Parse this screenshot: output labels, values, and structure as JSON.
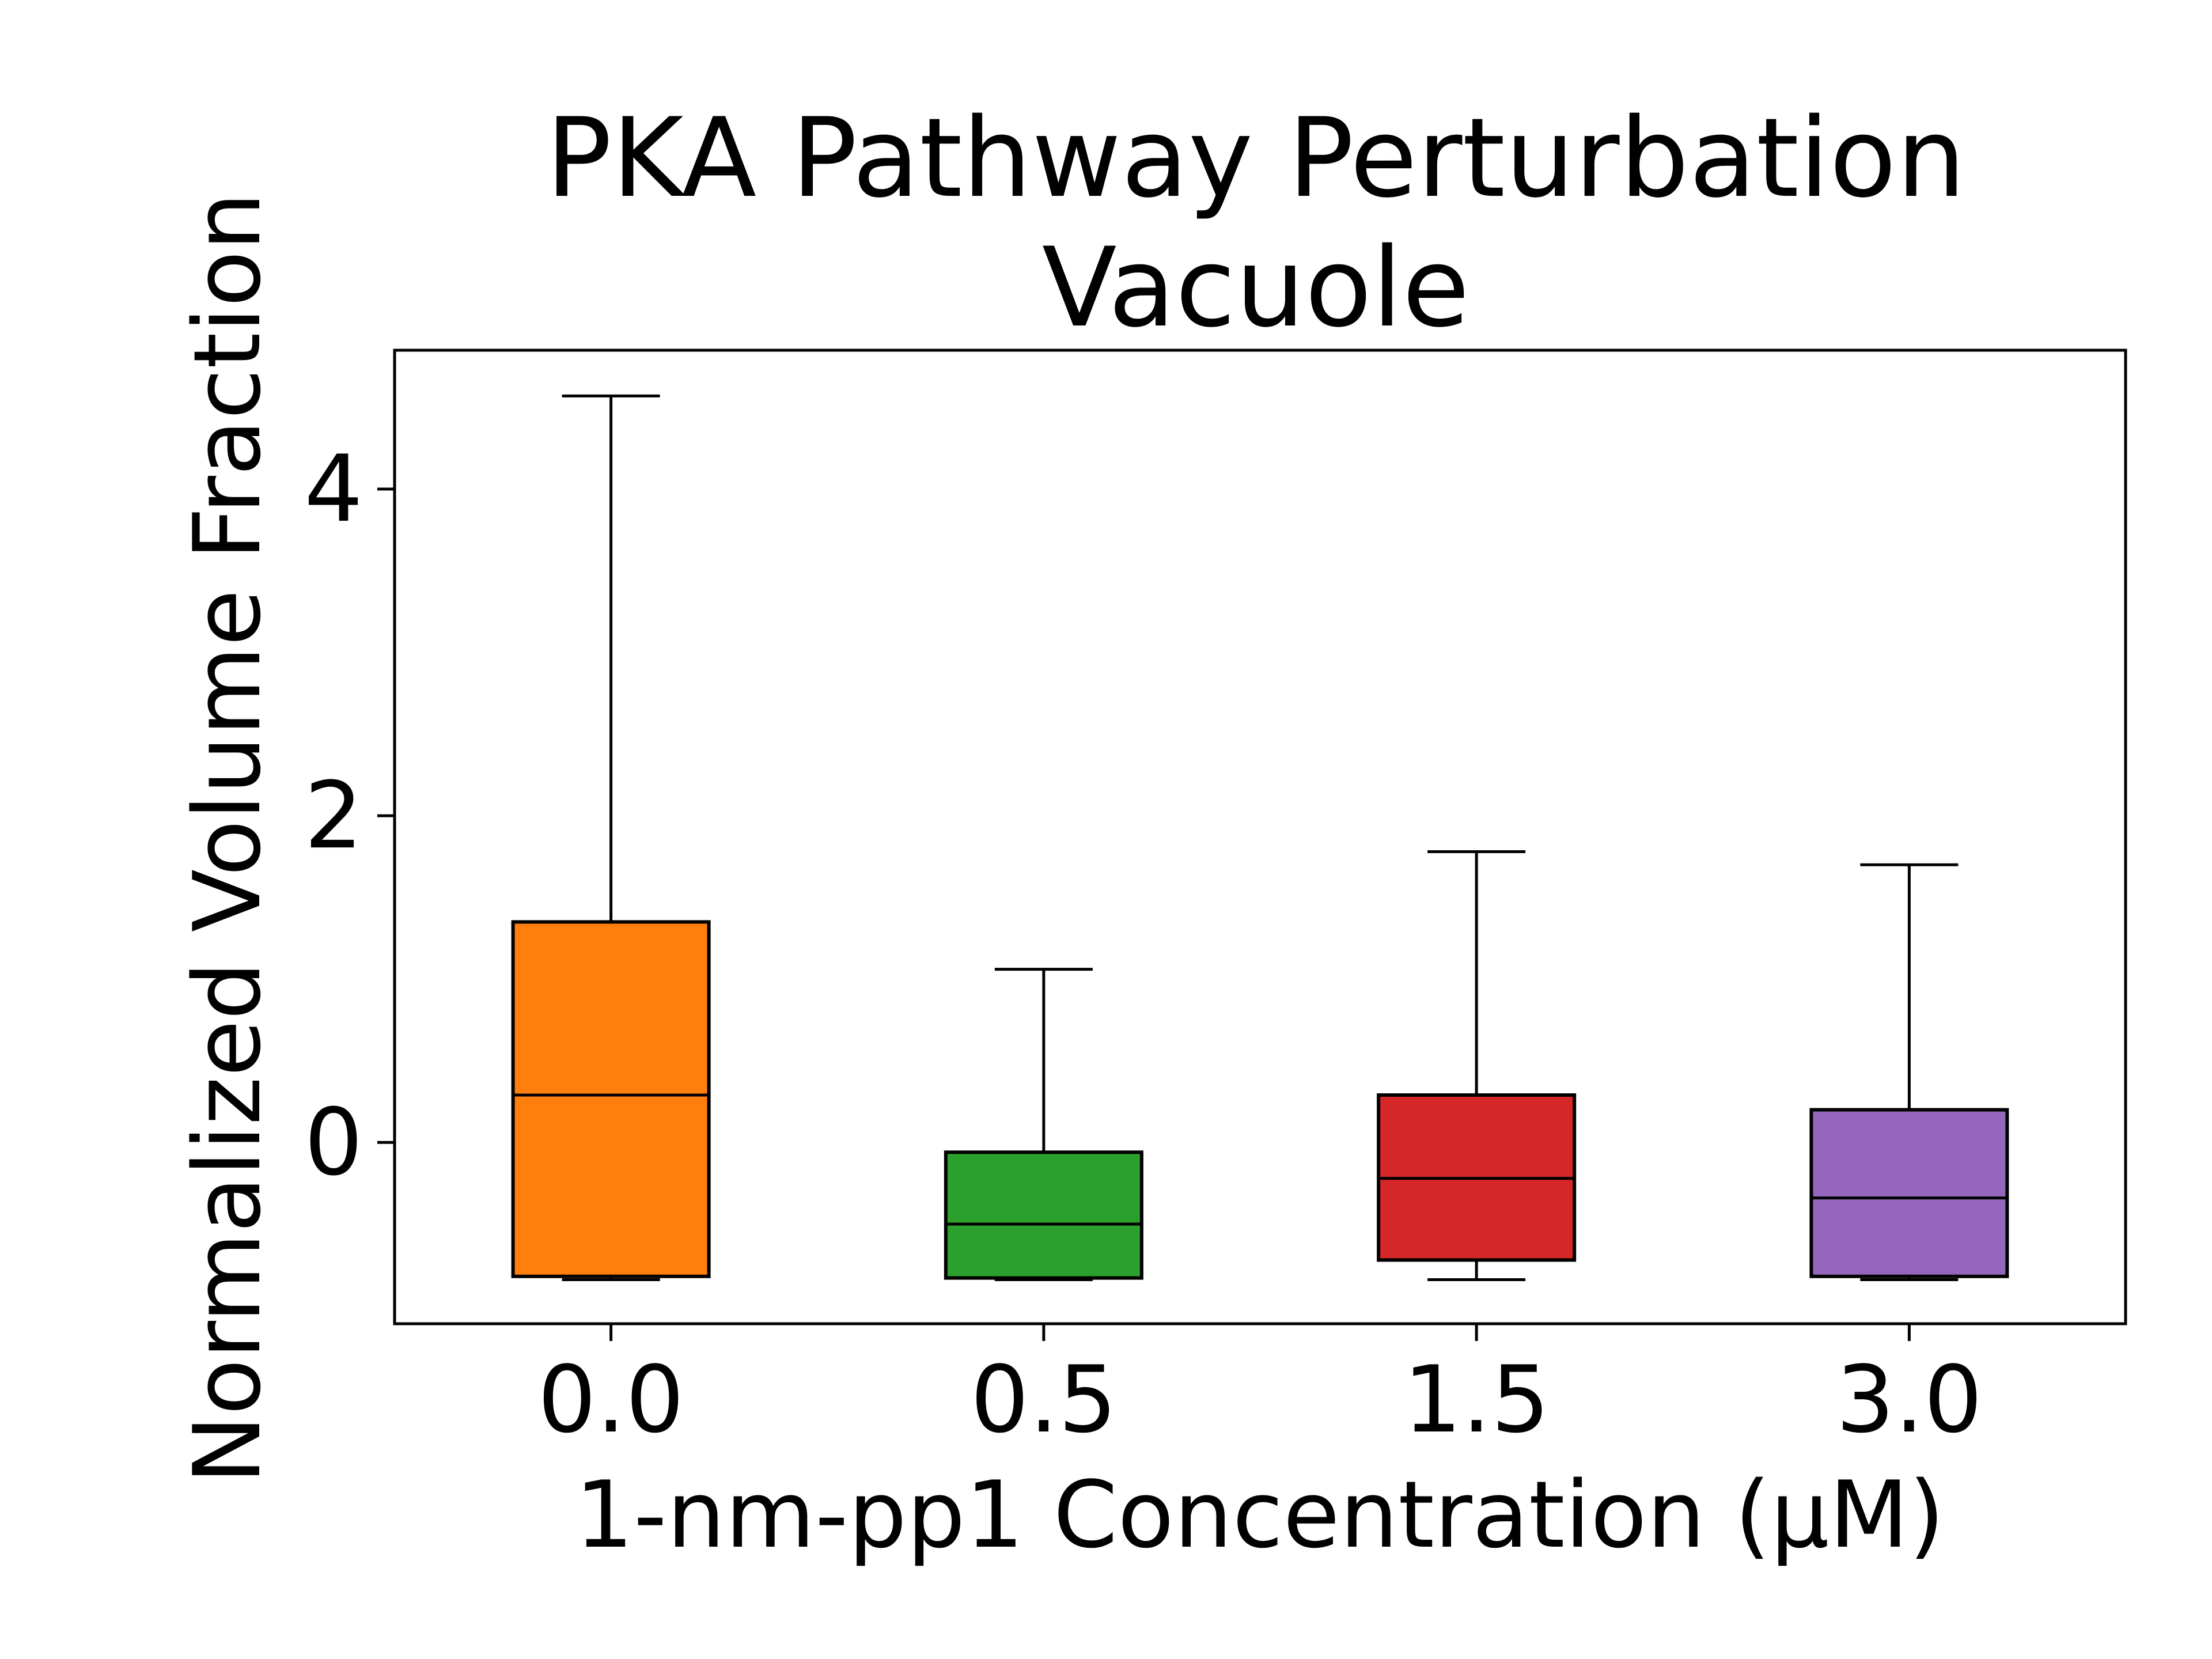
{
  "chart_data": {
    "type": "box",
    "title_lines": [
      "PKA Pathway Perturbation",
      "Vacuole"
    ],
    "xlabel": "1-nm-pp1 Concentration (μM)",
    "ylabel": "Normalized Volume Fraction",
    "ylim": [
      -1.11,
      4.85
    ],
    "yticks": [
      0,
      2,
      4
    ],
    "ytick_labels": [
      "0",
      "2",
      "4"
    ],
    "grid": false,
    "categories": [
      "0.0",
      "0.5",
      "1.5",
      "3.0"
    ],
    "boxes": [
      {
        "category": "0.0",
        "whisker_low": -0.84,
        "q1": -0.82,
        "median": 0.29,
        "q3": 1.35,
        "whisker_high": 4.57,
        "color": "#ff7f0e"
      },
      {
        "category": "0.5",
        "whisker_low": -0.84,
        "q1": -0.83,
        "median": -0.5,
        "q3": -0.06,
        "whisker_high": 1.06,
        "color": "#2ca02c"
      },
      {
        "category": "1.5",
        "whisker_low": -0.84,
        "q1": -0.72,
        "median": -0.22,
        "q3": 0.29,
        "whisker_high": 1.78,
        "color": "#d62728"
      },
      {
        "category": "3.0",
        "whisker_low": -0.84,
        "q1": -0.82,
        "median": -0.34,
        "q3": 0.2,
        "whisker_high": 1.7,
        "color": "#9467bd"
      }
    ]
  }
}
